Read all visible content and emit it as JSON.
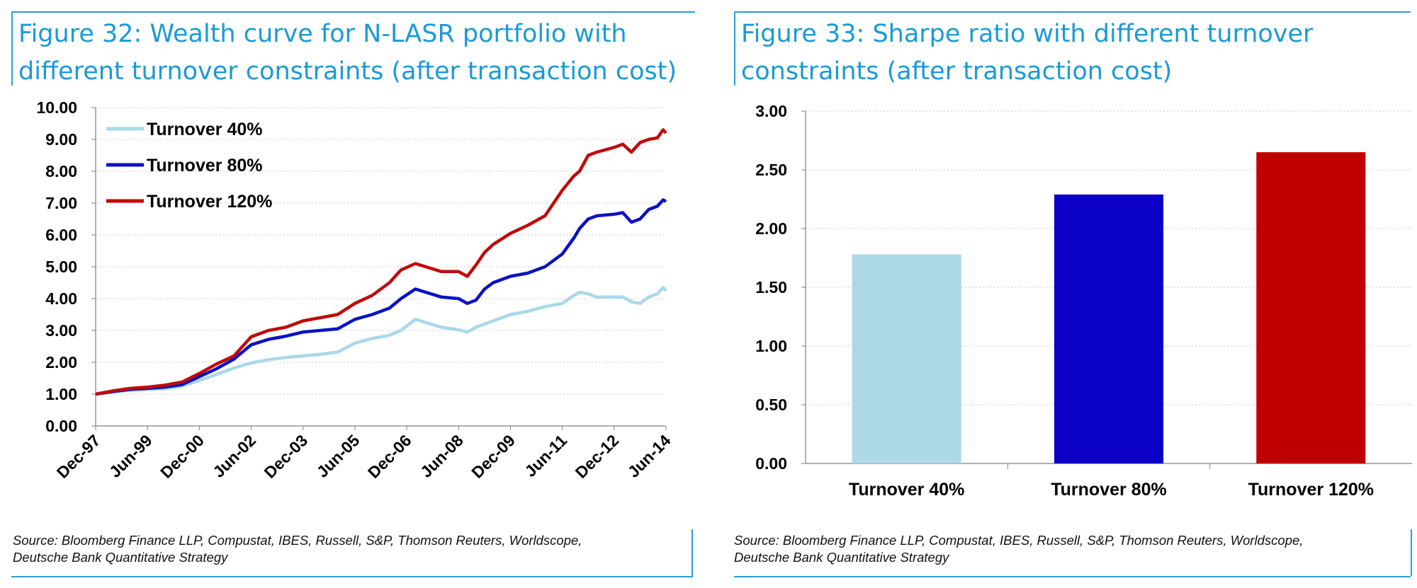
{
  "left": {
    "title_line1": "Figure 32: Wealth curve for N-LASR portfolio with",
    "title_line2": "different turnover constraints (after transaction cost)",
    "source_line1": "Source: Bloomberg Finance LLP, Compustat, IBES, Russell, S&P, Thomson Reuters, Worldscope,",
    "source_line2": "Deutsche Bank Quantitative Strategy"
  },
  "right": {
    "title_line1": "Figure 33: Sharpe ratio with different turnover",
    "title_line2": "constraints (after transaction cost)",
    "source_line1": "Source: Bloomberg Finance LLP, Compustat, IBES, Russell, S&P, Thomson Reuters, Worldscope,",
    "source_line2": "Deutsche Bank Quantitative Strategy"
  },
  "colors": {
    "accent": "#1a9ad6",
    "light_blue": "#a9d8ea",
    "blue": "#0a12c4",
    "red": "#c00a0a"
  },
  "chart_data": [
    {
      "type": "line",
      "title": "Figure 32: Wealth curve for N-LASR portfolio with different turnover constraints (after transaction cost)",
      "xlabel": "",
      "ylabel": "",
      "ylim": [
        0,
        10
      ],
      "yticks": [
        "0.00",
        "1.00",
        "2.00",
        "3.00",
        "4.00",
        "5.00",
        "6.00",
        "7.00",
        "8.00",
        "9.00",
        "10.00"
      ],
      "xticks": [
        "Dec-97",
        "Jun-99",
        "Dec-00",
        "Jun-02",
        "Dec-03",
        "Jun-05",
        "Dec-06",
        "Jun-08",
        "Dec-09",
        "Jun-11",
        "Dec-12",
        "Jun-14"
      ],
      "legend": "top-left",
      "grid": true,
      "x": [
        "Dec-97",
        "Jun-98",
        "Dec-98",
        "Jun-99",
        "Dec-99",
        "Jun-00",
        "Dec-00",
        "Jun-01",
        "Dec-01",
        "Jun-02",
        "Dec-02",
        "Jun-03",
        "Dec-03",
        "Jun-04",
        "Dec-04",
        "Jun-05",
        "Dec-05",
        "Jun-06",
        "Oct-06",
        "Mar-07",
        "Dec-07",
        "Jun-08",
        "Sep-08",
        "Dec-08",
        "Mar-09",
        "Jun-09",
        "Dec-09",
        "Jun-10",
        "Dec-10",
        "Jun-11",
        "Oct-11",
        "Dec-11",
        "Mar-12",
        "Jun-12",
        "Dec-12",
        "Mar-13",
        "Jun-13",
        "Sep-13",
        "Dec-13",
        "Mar-14",
        "May-14",
        "Jun-14"
      ],
      "series": [
        {
          "name": "Turnover 40%",
          "color": "#a9d8ea",
          "values": [
            1.0,
            1.07,
            1.12,
            1.15,
            1.17,
            1.25,
            1.43,
            1.62,
            1.82,
            1.98,
            2.08,
            2.15,
            2.2,
            2.25,
            2.32,
            2.6,
            2.75,
            2.85,
            3.0,
            3.35,
            3.1,
            3.02,
            2.95,
            3.1,
            3.2,
            3.3,
            3.5,
            3.6,
            3.75,
            3.85,
            4.1,
            4.2,
            4.15,
            4.05,
            4.05,
            4.05,
            3.9,
            3.85,
            4.05,
            4.15,
            4.35,
            4.25
          ]
        },
        {
          "name": "Turnover 80%",
          "color": "#0a12c4",
          "values": [
            1.0,
            1.08,
            1.15,
            1.18,
            1.22,
            1.3,
            1.55,
            1.8,
            2.1,
            2.55,
            2.72,
            2.82,
            2.95,
            3.0,
            3.05,
            3.35,
            3.5,
            3.7,
            4.0,
            4.3,
            4.05,
            4.0,
            3.85,
            3.95,
            4.3,
            4.5,
            4.7,
            4.8,
            5.0,
            5.4,
            5.9,
            6.2,
            6.5,
            6.6,
            6.65,
            6.7,
            6.4,
            6.5,
            6.8,
            6.9,
            7.1,
            7.05
          ]
        },
        {
          "name": "Turnover 120%",
          "color": "#c00a0a",
          "values": [
            1.0,
            1.1,
            1.18,
            1.22,
            1.28,
            1.38,
            1.65,
            1.95,
            2.2,
            2.8,
            3.0,
            3.1,
            3.3,
            3.4,
            3.5,
            3.85,
            4.1,
            4.5,
            4.9,
            5.1,
            4.85,
            4.85,
            4.7,
            5.05,
            5.45,
            5.7,
            6.05,
            6.3,
            6.6,
            7.4,
            7.85,
            8.0,
            8.5,
            8.6,
            8.75,
            8.85,
            8.6,
            8.9,
            9.0,
            9.05,
            9.3,
            9.2
          ]
        }
      ]
    },
    {
      "type": "bar",
      "title": "Figure 33: Sharpe ratio with different turnover constraints (after transaction cost)",
      "xlabel": "",
      "ylabel": "",
      "ylim": [
        0,
        3
      ],
      "yticks": [
        "0.00",
        "0.50",
        "1.00",
        "1.50",
        "2.00",
        "2.50",
        "3.00"
      ],
      "grid": true,
      "categories": [
        "Turnover 40%",
        "Turnover 80%",
        "Turnover 120%"
      ],
      "values": [
        1.78,
        2.29,
        2.65
      ],
      "colors": [
        "#add8e6",
        "#0a00c8",
        "#c00000"
      ]
    }
  ]
}
